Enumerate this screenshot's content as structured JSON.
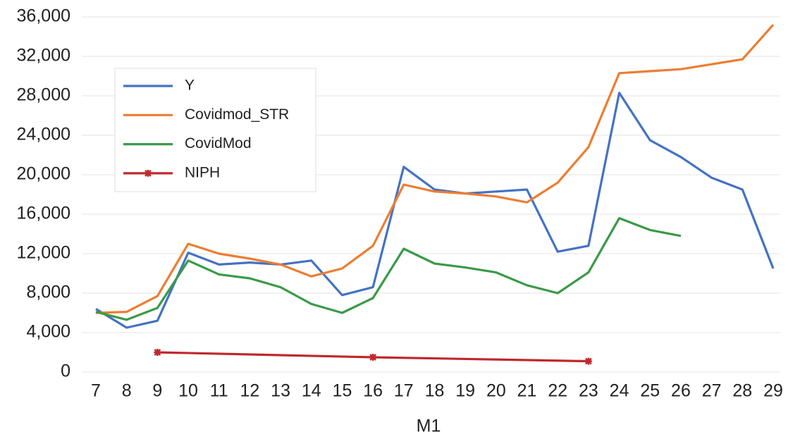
{
  "chart_data": {
    "type": "line",
    "x_label": "M1",
    "x": [
      7,
      8,
      9,
      10,
      11,
      12,
      13,
      14,
      15,
      16,
      17,
      18,
      19,
      20,
      21,
      22,
      23,
      24,
      25,
      26,
      27,
      28,
      29
    ],
    "xlim": [
      7,
      29
    ],
    "xticks": [
      7,
      8,
      9,
      10,
      11,
      12,
      13,
      14,
      15,
      16,
      17,
      18,
      19,
      20,
      21,
      22,
      23,
      24,
      25,
      26,
      27,
      28,
      29
    ],
    "ylim": [
      0,
      36000
    ],
    "yticks": [
      0,
      {
        "value": 4000,
        "label": "4,000"
      },
      {
        "value": 8000,
        "label": "8,000"
      },
      {
        "value": 12000,
        "label": "12,000"
      },
      {
        "value": 16000,
        "label": "16,000"
      },
      {
        "value": 20000,
        "label": "20,000"
      },
      {
        "value": 24000,
        "label": "24,000"
      },
      {
        "value": 28000,
        "label": "28,000"
      },
      {
        "value": 32000,
        "label": "32,000"
      },
      {
        "value": 36000,
        "label": "36,000"
      }
    ],
    "grid": true,
    "legend": "upper left",
    "series": [
      {
        "name": "Y",
        "color": "#4472c4",
        "values": [
          6400,
          4500,
          5200,
          12100,
          10900,
          11100,
          10900,
          11300,
          7800,
          8600,
          20800,
          18500,
          18100,
          18300,
          18500,
          12200,
          12800,
          28300,
          23500,
          21800,
          19700,
          18500,
          10500
        ]
      },
      {
        "name": "Covidmod_STR",
        "color": "#ed7d31",
        "values": [
          6000,
          6100,
          7700,
          13000,
          12000,
          11500,
          10900,
          9700,
          10500,
          12800,
          19000,
          18300,
          18100,
          17800,
          17200,
          19200,
          22800,
          30300,
          30500,
          30700,
          31200,
          31700,
          35200
        ]
      },
      {
        "name": "CovidMod",
        "color": "#3a9a48",
        "values": [
          6100,
          5300,
          6500,
          11300,
          9900,
          9500,
          8600,
          6900,
          6000,
          7500,
          12500,
          11000,
          10600,
          10100,
          8800,
          8000,
          10100,
          15600,
          14400,
          13800,
          null,
          null,
          null
        ]
      },
      {
        "name": "NIPH",
        "color": "#c0282d",
        "marker": "asterisk",
        "x": [
          9,
          16,
          23
        ],
        "values": [
          2000,
          1500,
          1100
        ]
      }
    ]
  }
}
